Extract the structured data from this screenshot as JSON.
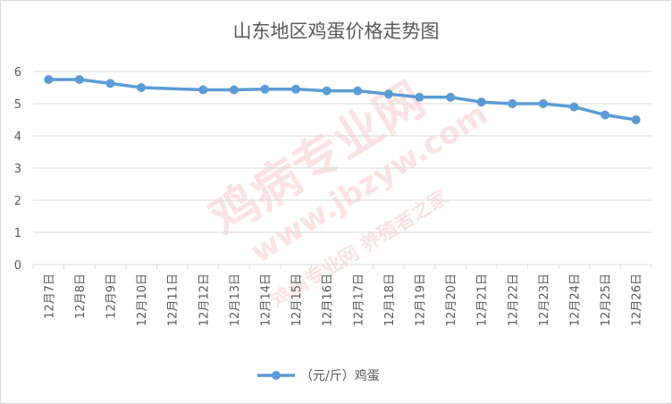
{
  "chart_data": {
    "type": "line",
    "title": "山东地区鸡蛋价格走势图",
    "xlabel": "",
    "ylabel": "",
    "ylim": [
      0,
      6
    ],
    "yticks": [
      "0",
      "1",
      "2",
      "3",
      "4",
      "5",
      "6"
    ],
    "categories": [
      "12月7日",
      "12月8日",
      "12月9日",
      "12月10日",
      "12月11日",
      "12月12日",
      "12月13日",
      "12月14日",
      "12月15日",
      "12月16日",
      "12月17日",
      "12月18日",
      "12月19日",
      "12月20日",
      "12月21日",
      "12月22日",
      "12月23日",
      "12月24日",
      "12月25日",
      "12月26日"
    ],
    "series": [
      {
        "name": "（元/斤）鸡蛋",
        "values": [
          5.75,
          5.75,
          5.63,
          5.5,
          null,
          5.43,
          5.43,
          5.45,
          5.45,
          5.4,
          5.4,
          5.3,
          5.2,
          5.2,
          5.05,
          5.0,
          5.0,
          4.9,
          4.65,
          4.5
        ]
      }
    ],
    "grid": true,
    "legend": "bottom",
    "colors": {
      "series": "#5b9bd5",
      "grid": "#d9d9d9",
      "axis_text": "#595959"
    }
  },
  "watermark": {
    "main": "鸡病专业网",
    "url": "www.jbzyw.com",
    "sub": "鸡病专业网 养殖者之家"
  }
}
